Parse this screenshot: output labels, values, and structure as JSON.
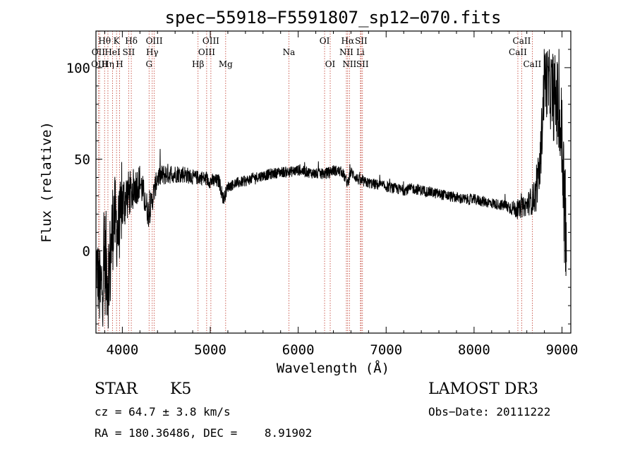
{
  "chart_data": {
    "type": "line",
    "title": "spec−55918−F5591807_sp12−070.fits",
    "xlabel": "Wavelength (Å)",
    "ylabel": "Flux (relative)",
    "xlim": [
      3700,
      9100
    ],
    "ylim": [
      -45,
      120
    ],
    "x_ticks": [
      4000,
      5000,
      6000,
      7000,
      8000,
      9000
    ],
    "y_ticks": [
      0,
      50,
      100
    ],
    "x_tick_labels": [
      "4000",
      "5000",
      "6000",
      "7000",
      "8000",
      "9000"
    ],
    "y_tick_labels": [
      "0",
      "50",
      "100"
    ],
    "spectral_lines": [
      {
        "label": "Hθ",
        "wavelength": 3798,
        "row": 1
      },
      {
        "label": "OII",
        "wavelength": 3727,
        "row": 2
      },
      {
        "label": "OIII",
        "wavelength": 3741,
        "row": 3
      },
      {
        "label": "Hη",
        "wavelength": 3836,
        "row": 3
      },
      {
        "label": "K",
        "wavelength": 3934,
        "row": 1
      },
      {
        "label": "HeI",
        "wavelength": 3889,
        "row": 2
      },
      {
        "label": "H",
        "wavelength": 3969,
        "row": 3
      },
      {
        "label": "Hδ",
        "wavelength": 4102,
        "row": 1
      },
      {
        "label": "SII",
        "wavelength": 4072,
        "row": 2
      },
      {
        "label": "OIII",
        "wavelength": 4363,
        "row": 1
      },
      {
        "label": "Hγ",
        "wavelength": 4340,
        "row": 2
      },
      {
        "label": "G",
        "wavelength": 4304,
        "row": 3
      },
      {
        "label": "OIII",
        "wavelength": 5007,
        "row": 1
      },
      {
        "label": "OIII",
        "wavelength": 4959,
        "row": 2
      },
      {
        "label": "Hβ",
        "wavelength": 4861,
        "row": 3
      },
      {
        "label": "Mg",
        "wavelength": 5175,
        "row": 3
      },
      {
        "label": "Na",
        "wavelength": 5894,
        "row": 2
      },
      {
        "label": "OI",
        "wavelength": 6300,
        "row": 1
      },
      {
        "label": "OI",
        "wavelength": 6364,
        "row": 3
      },
      {
        "label": "Hα",
        "wavelength": 6563,
        "row": 1
      },
      {
        "label": "NII",
        "wavelength": 6548,
        "row": 2
      },
      {
        "label": "NII",
        "wavelength": 6583,
        "row": 3
      },
      {
        "label": "SII",
        "wavelength": 6716,
        "row": 1
      },
      {
        "label": "Li",
        "wavelength": 6708,
        "row": 2
      },
      {
        "label": "SII",
        "wavelength": 6731,
        "row": 3
      },
      {
        "label": "CaII",
        "wavelength": 8542,
        "row": 1
      },
      {
        "label": "CaII",
        "wavelength": 8498,
        "row": 2
      },
      {
        "label": "CaII",
        "wavelength": 8662,
        "row": 3
      }
    ],
    "spectrum_outline": {
      "x": [
        3700,
        3750,
        3800,
        3850,
        3900,
        3950,
        4000,
        4050,
        4100,
        4200,
        4300,
        4400,
        4500,
        4600,
        4700,
        4800,
        4900,
        5000,
        5100,
        5150,
        5200,
        5300,
        5400,
        5500,
        5600,
        5700,
        5800,
        5900,
        6000,
        6100,
        6200,
        6300,
        6400,
        6500,
        6560,
        6600,
        6700,
        6800,
        6900,
        7000,
        7100,
        7200,
        7300,
        7400,
        7500,
        7600,
        7700,
        7800,
        7900,
        8000,
        8100,
        8200,
        8300,
        8400,
        8500,
        8600,
        8700,
        8750,
        8800,
        8850,
        8900,
        8950,
        9000,
        9050
      ],
      "y": [
        -5,
        -25,
        -5,
        -15,
        20,
        10,
        25,
        30,
        32,
        38,
        20,
        40,
        42,
        42,
        42,
        40,
        40,
        38,
        38,
        28,
        35,
        37,
        38,
        40,
        41,
        42,
        43,
        43,
        44,
        43,
        42,
        42,
        44,
        43,
        37,
        43,
        38,
        37,
        36,
        35,
        34,
        33,
        34,
        33,
        32,
        31,
        30,
        29,
        28,
        28,
        27,
        26,
        25,
        24,
        22,
        25,
        30,
        45,
        95,
        90,
        85,
        80,
        60,
        -5
      ],
      "noise_amplitude": [
        18,
        25,
        30,
        30,
        25,
        22,
        18,
        14,
        12,
        10,
        8,
        6,
        6,
        5,
        5,
        4,
        4,
        4,
        4,
        4,
        3,
        3,
        3,
        3,
        3,
        3,
        3,
        3,
        3,
        3,
        3,
        3,
        3,
        3,
        3,
        3,
        3,
        3,
        3,
        3,
        3,
        3,
        3,
        3,
        3,
        3,
        3,
        3,
        3,
        3,
        3,
        3,
        3,
        4,
        5,
        6,
        10,
        15,
        20,
        20,
        25,
        25,
        30,
        40
      ]
    }
  },
  "info": {
    "object_class": "STAR",
    "subclass": "K5",
    "survey": "LAMOST DR3",
    "cz": "cz = 64.7 ± 3.8 km/s",
    "obs_date": "Obs−Date: 20111222",
    "coords": "RA = 180.36486, DEC =    8.91902"
  }
}
